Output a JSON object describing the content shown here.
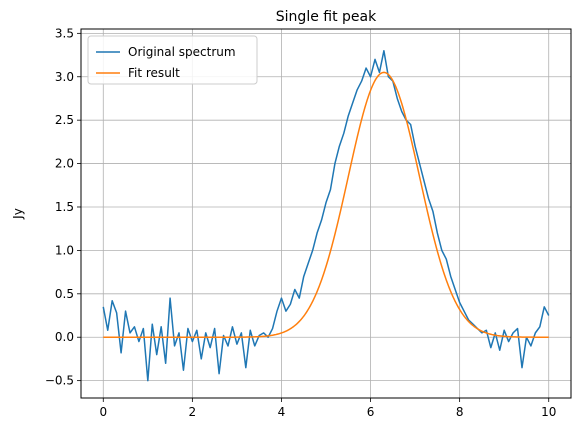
{
  "chart_data": {
    "type": "line",
    "title": "Single fit peak",
    "xlabel": "",
    "ylabel": "Jy",
    "xlim": [
      -0.5,
      10.5
    ],
    "ylim": [
      -0.7,
      3.55
    ],
    "grid": true,
    "legend_position": "top-left",
    "xticks": [
      0,
      2,
      4,
      6,
      8,
      10
    ],
    "xtick_labels": [
      "0",
      "2",
      "4",
      "6",
      "8",
      "10"
    ],
    "yticks": [
      -0.5,
      0.0,
      0.5,
      1.0,
      1.5,
      2.0,
      2.5,
      3.0,
      3.5
    ],
    "ytick_labels": [
      "−0.5",
      "0.0",
      "0.5",
      "1.0",
      "1.5",
      "2.0",
      "2.5",
      "3.0",
      "3.5"
    ],
    "series": [
      {
        "name": "Original spectrum",
        "color": "#1f77b4",
        "x": [
          0.0,
          0.1,
          0.2,
          0.3,
          0.4,
          0.5,
          0.6,
          0.7,
          0.8,
          0.9,
          1.0,
          1.1,
          1.2,
          1.3,
          1.4,
          1.5,
          1.6,
          1.7,
          1.8,
          1.9,
          2.0,
          2.1,
          2.2,
          2.3,
          2.4,
          2.5,
          2.6,
          2.7,
          2.8,
          2.9,
          3.0,
          3.1,
          3.2,
          3.3,
          3.4,
          3.5,
          3.6,
          3.7,
          3.8,
          3.9,
          4.0,
          4.1,
          4.2,
          4.3,
          4.4,
          4.5,
          4.6,
          4.7,
          4.8,
          4.9,
          5.0,
          5.1,
          5.2,
          5.3,
          5.4,
          5.5,
          5.6,
          5.7,
          5.8,
          5.9,
          6.0,
          6.1,
          6.2,
          6.3,
          6.4,
          6.5,
          6.6,
          6.7,
          6.8,
          6.9,
          7.0,
          7.1,
          7.2,
          7.3,
          7.4,
          7.5,
          7.6,
          7.7,
          7.8,
          7.9,
          8.0,
          8.1,
          8.2,
          8.3,
          8.4,
          8.5,
          8.6,
          8.7,
          8.8,
          8.9,
          9.0,
          9.1,
          9.2,
          9.3,
          9.4,
          9.5,
          9.6,
          9.7,
          9.8,
          9.9,
          10.0
        ],
        "values": [
          0.35,
          0.08,
          0.42,
          0.28,
          -0.18,
          0.3,
          0.05,
          0.12,
          -0.05,
          0.1,
          -0.5,
          0.15,
          -0.2,
          0.12,
          -0.3,
          0.45,
          -0.1,
          0.05,
          -0.38,
          0.1,
          -0.05,
          0.08,
          -0.25,
          0.05,
          -0.12,
          0.1,
          -0.42,
          0.02,
          -0.1,
          0.12,
          -0.08,
          0.05,
          -0.35,
          0.08,
          -0.1,
          0.02,
          0.05,
          0.0,
          0.1,
          0.3,
          0.45,
          0.3,
          0.38,
          0.55,
          0.45,
          0.7,
          0.85,
          1.0,
          1.2,
          1.35,
          1.55,
          1.7,
          2.0,
          2.2,
          2.35,
          2.55,
          2.7,
          2.85,
          2.95,
          3.1,
          3.0,
          3.2,
          3.05,
          3.3,
          3.0,
          2.95,
          2.75,
          2.6,
          2.5,
          2.45,
          2.2,
          2.0,
          1.8,
          1.6,
          1.45,
          1.2,
          1.0,
          0.9,
          0.7,
          0.55,
          0.4,
          0.3,
          0.2,
          0.15,
          0.1,
          0.05,
          0.08,
          -0.12,
          0.05,
          -0.15,
          0.08,
          -0.05,
          0.05,
          0.1,
          -0.35,
          0.0,
          -0.1,
          0.05,
          0.12,
          0.35,
          0.25
        ]
      },
      {
        "name": "Fit result",
        "color": "#ff7f0e",
        "amplitude": 3.05,
        "center": 6.3,
        "sigma": 0.8,
        "x_range": [
          0,
          10
        ]
      }
    ]
  }
}
